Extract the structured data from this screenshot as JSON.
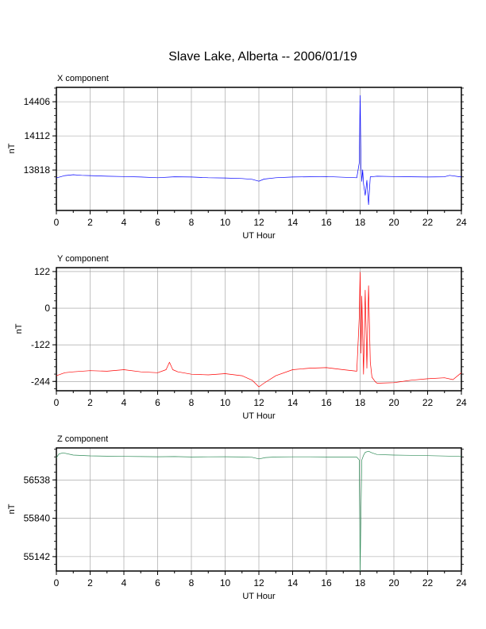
{
  "title": "Slave Lake, Alberta -- 2006/01/19",
  "chart_data": [
    {
      "type": "line",
      "panel_title": "X component",
      "ylabel": "nT",
      "xlabel": "UT Hour",
      "xlim": [
        0,
        24
      ],
      "xticks": [
        "0",
        "2",
        "4",
        "6",
        "8",
        "10",
        "12",
        "14",
        "16",
        "18",
        "20",
        "22",
        "24"
      ],
      "ylim": [
        13470,
        14530
      ],
      "yticks": [
        13818,
        14112,
        14406
      ],
      "ytick_labels": [
        "13818",
        "14112",
        "14406"
      ],
      "grid": true,
      "color": "#0000ff",
      "x": [
        0,
        0.5,
        1,
        1.5,
        2,
        3,
        4,
        5,
        6,
        7,
        8,
        9,
        10,
        11,
        11.6,
        12,
        12.3,
        13,
        14,
        15,
        16,
        17,
        17.8,
        17.95,
        18.0,
        18.05,
        18.1,
        18.15,
        18.2,
        18.3,
        18.4,
        18.5,
        18.6,
        18.8,
        19,
        20,
        21,
        22,
        23,
        23.3,
        24
      ],
      "y": [
        13750,
        13770,
        13778,
        13772,
        13770,
        13765,
        13762,
        13758,
        13752,
        13760,
        13758,
        13752,
        13750,
        13745,
        13738,
        13722,
        13740,
        13752,
        13758,
        13760,
        13762,
        13756,
        13752,
        13880,
        14460,
        13850,
        13720,
        13820,
        13700,
        13600,
        13730,
        13520,
        13760,
        13762,
        13765,
        13762,
        13760,
        13758,
        13760,
        13772,
        13758
      ]
    },
    {
      "type": "line",
      "panel_title": "Y component",
      "ylabel": "nT",
      "xlabel": "UT Hour",
      "xlim": [
        0,
        24
      ],
      "xticks": [
        "0",
        "2",
        "4",
        "6",
        "8",
        "10",
        "12",
        "14",
        "16",
        "18",
        "20",
        "22",
        "24"
      ],
      "ylim": [
        -275,
        135
      ],
      "yticks": [
        -244,
        -122,
        0,
        122
      ],
      "ytick_labels": [
        "-244",
        "-122",
        "0",
        "122"
      ],
      "grid": true,
      "color": "#ff0000",
      "x": [
        0,
        0.5,
        1,
        2,
        3,
        4,
        5,
        6,
        6.5,
        6.7,
        6.9,
        7.2,
        8,
        9,
        10,
        11,
        11.6,
        12,
        12.3,
        13,
        14,
        15,
        16,
        17,
        17.8,
        17.95,
        18.0,
        18.05,
        18.1,
        18.2,
        18.3,
        18.4,
        18.5,
        18.6,
        18.7,
        18.9,
        19,
        20,
        21,
        22,
        23,
        23.5,
        24
      ],
      "y": [
        -225,
        -215,
        -212,
        -208,
        -210,
        -205,
        -212,
        -215,
        -205,
        -180,
        -205,
        -212,
        -220,
        -222,
        -218,
        -225,
        -240,
        -262,
        -250,
        -225,
        -205,
        -200,
        -198,
        -205,
        -210,
        -30,
        120,
        -150,
        40,
        -220,
        60,
        -200,
        75,
        -180,
        -230,
        -245,
        -250,
        -248,
        -240,
        -235,
        -232,
        -238,
        -215
      ]
    },
    {
      "type": "line",
      "panel_title": "Z component",
      "ylabel": "nT",
      "xlabel": "UT Hour",
      "xlim": [
        0,
        24
      ],
      "xticks": [
        "0",
        "2",
        "4",
        "6",
        "8",
        "10",
        "12",
        "14",
        "16",
        "18",
        "20",
        "22",
        "24"
      ],
      "ylim": [
        54880,
        57120
      ],
      "yticks": [
        55142,
        55840,
        56538
      ],
      "ytick_labels": [
        "55142",
        "55840",
        "56538"
      ],
      "grid": true,
      "color": "#2e8b57",
      "x": [
        0,
        0.15,
        0.4,
        1,
        2,
        3,
        4,
        5,
        6,
        7,
        8,
        9,
        10,
        11,
        11.6,
        12,
        12.4,
        13,
        14,
        15,
        16,
        17,
        17.8,
        17.95,
        18.0,
        18.05,
        18.1,
        18.2,
        18.3,
        18.5,
        18.7,
        19,
        20,
        21,
        22,
        23,
        24
      ],
      "y": [
        56940,
        57010,
        57030,
        56990,
        56975,
        56970,
        56965,
        56962,
        56960,
        56962,
        56955,
        56958,
        56960,
        56955,
        56950,
        56920,
        56945,
        56955,
        56958,
        56958,
        56955,
        56952,
        56952,
        56900,
        54880,
        56000,
        56900,
        56985,
        57040,
        57060,
        57030,
        57000,
        56990,
        56985,
        56980,
        56972,
        56965
      ]
    }
  ]
}
